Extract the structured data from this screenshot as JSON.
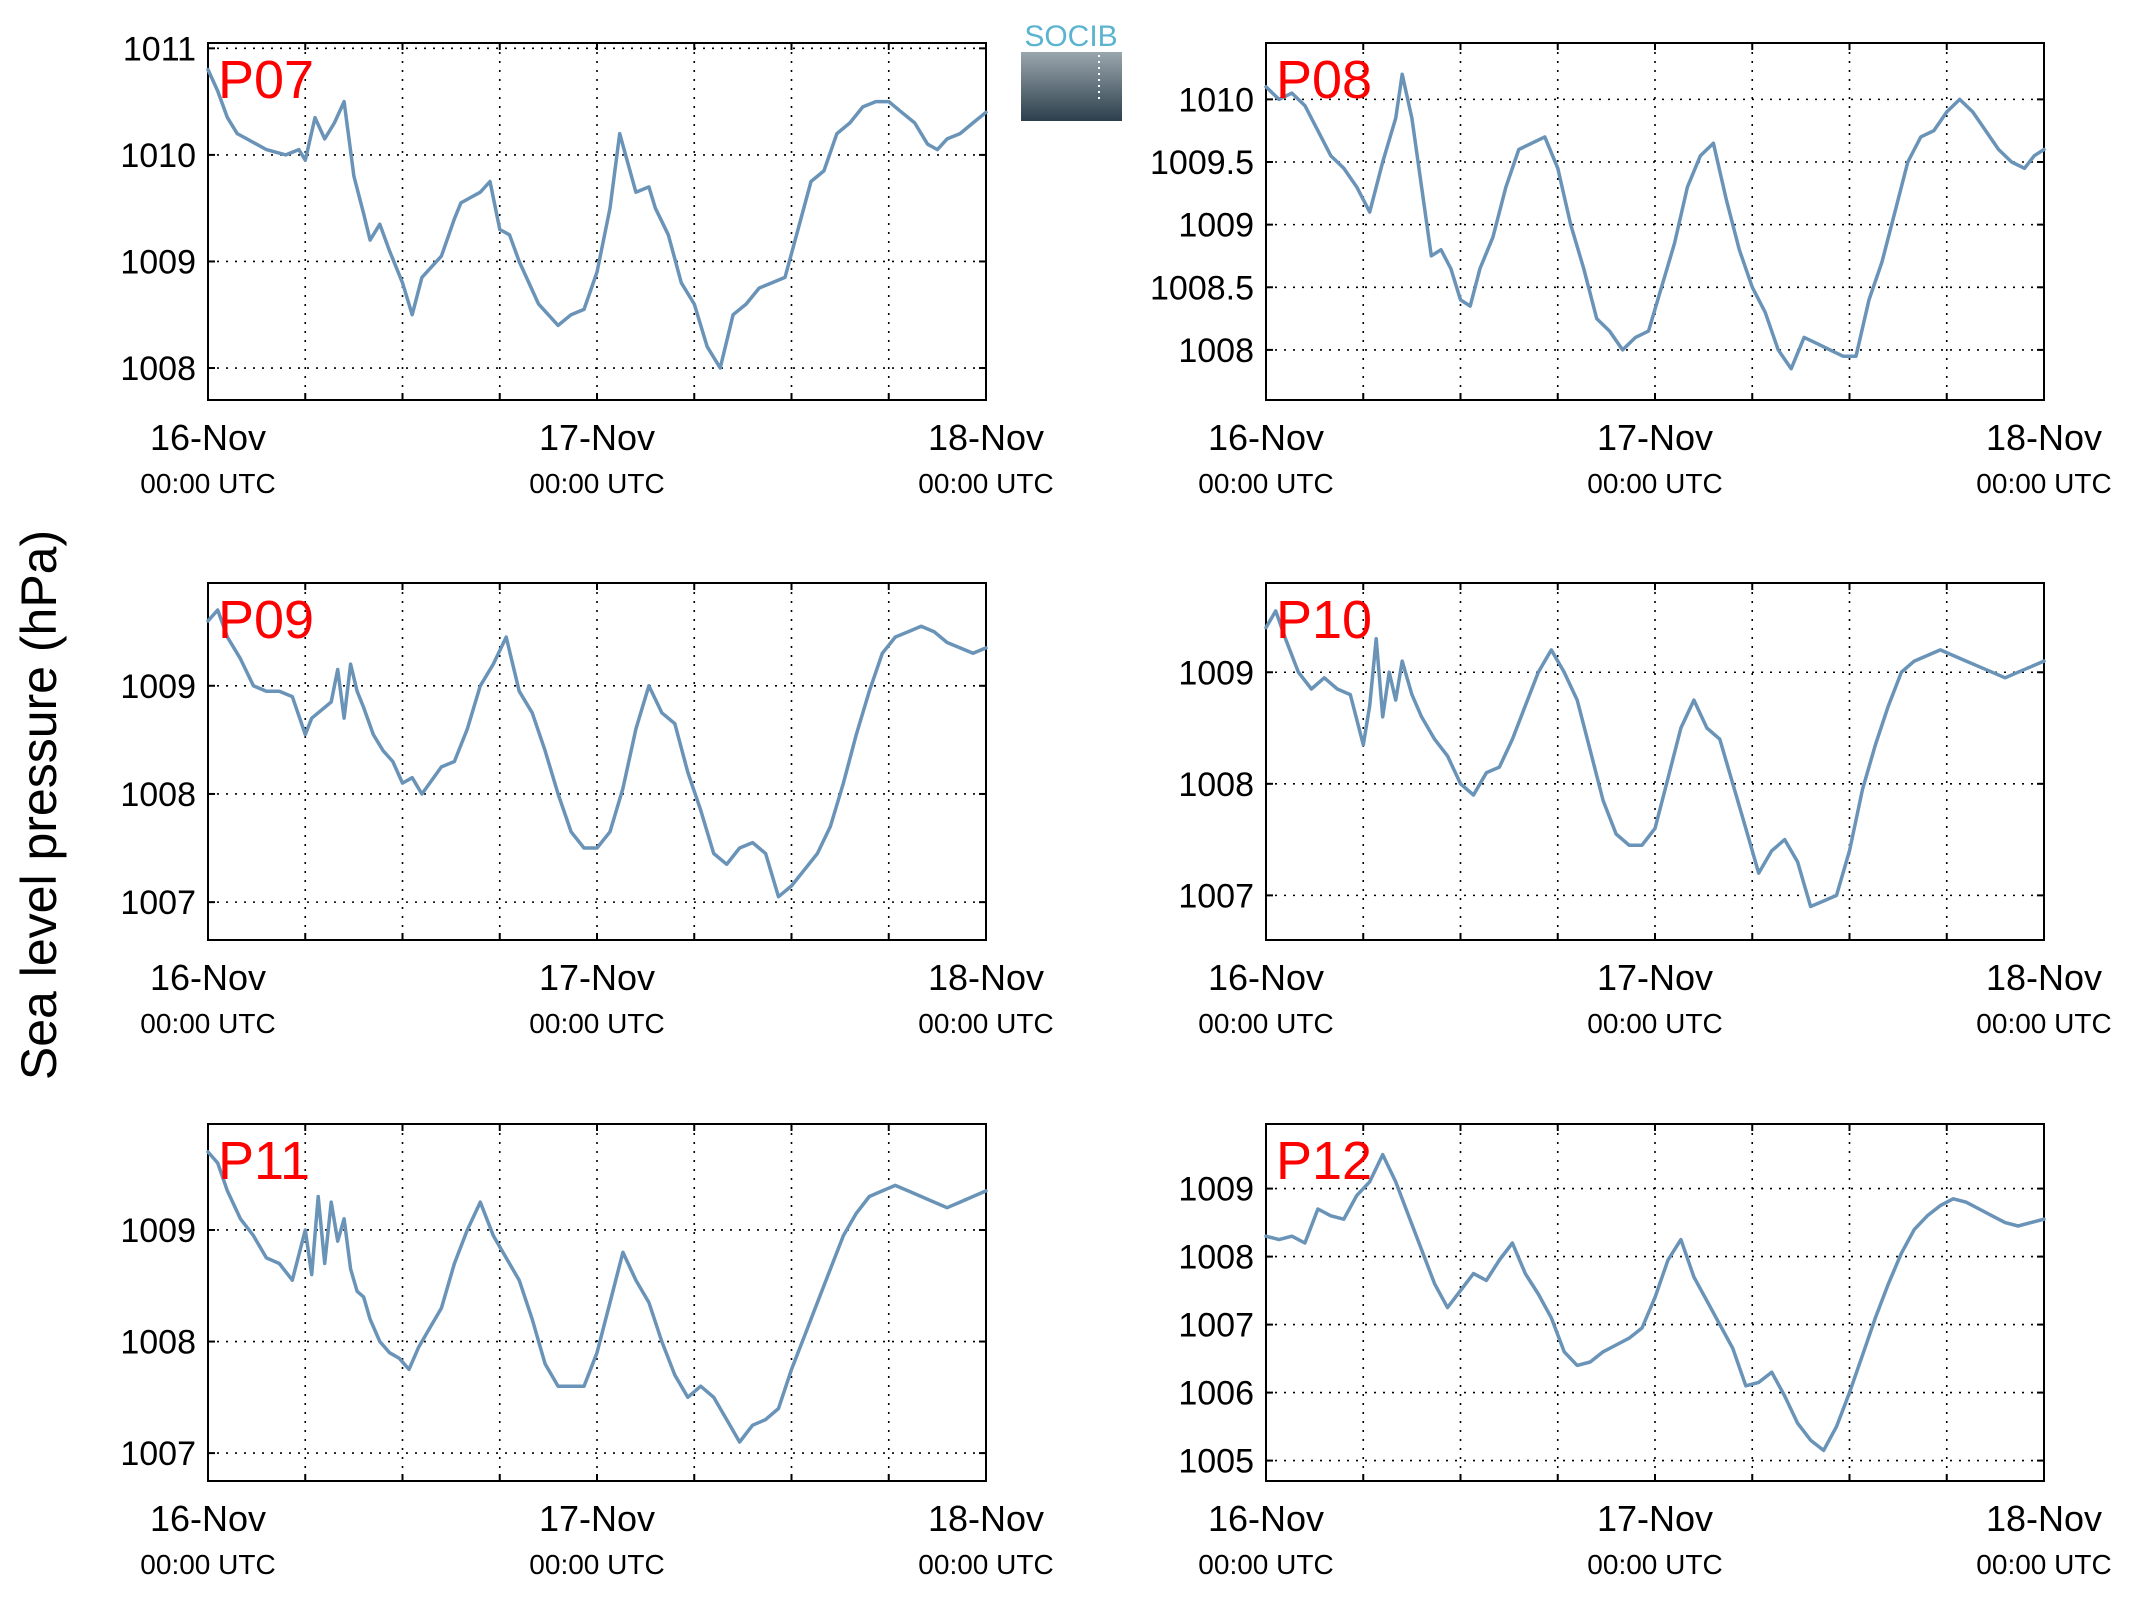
{
  "ylabel": "Sea level pressure (hPa)",
  "logo": {
    "text": "SOCIB"
  },
  "colors": {
    "line": "#6a93b8",
    "station_label": "#ff0000",
    "grid": "#000000",
    "logo_text": "#5ab4d0",
    "logo_top": "#9aa6ad",
    "logo_bottom": "#2c3f4c"
  },
  "chart_data": [
    {
      "type": "line",
      "station": "P07",
      "xlabels": [
        {
          "date": "16-Nov",
          "time": "00:00 UTC"
        },
        {
          "date": "17-Nov",
          "time": "00:00 UTC"
        },
        {
          "date": "18-Nov",
          "time": "00:00 UTC"
        }
      ],
      "xlim": [
        0,
        48
      ],
      "ylim": [
        1007.7,
        1011.05
      ],
      "yticks": [
        1008,
        1009,
        1010,
        1011
      ],
      "grid": true,
      "x": [
        0,
        0.6,
        1.2,
        1.8,
        2.4,
        3.6,
        4.8,
        5.6,
        6.0,
        6.6,
        7.2,
        7.8,
        8.4,
        9.0,
        9.6,
        10.0,
        10.6,
        11.2,
        12.0,
        12.6,
        13.2,
        14.4,
        15.2,
        15.6,
        16.2,
        16.8,
        17.4,
        18.0,
        18.6,
        19.2,
        20.4,
        21.6,
        22.4,
        23.2,
        24.0,
        24.8,
        25.4,
        26.4,
        27.2,
        27.6,
        28.4,
        29.2,
        30.0,
        30.8,
        31.6,
        32.4,
        33.2,
        34.0,
        34.8,
        35.6,
        36.4,
        37.2,
        38.0,
        38.8,
        39.6,
        40.4,
        41.2,
        42.0,
        42.8,
        43.6,
        44.4,
        45.0,
        45.6,
        46.4,
        47.2,
        48.0
      ],
      "values": [
        1010.8,
        1010.6,
        1010.35,
        1010.2,
        1010.15,
        1010.05,
        1010.0,
        1010.05,
        1009.95,
        1010.35,
        1010.15,
        1010.3,
        1010.5,
        1009.8,
        1009.45,
        1009.2,
        1009.35,
        1009.1,
        1008.8,
        1008.5,
        1008.85,
        1009.05,
        1009.4,
        1009.55,
        1009.6,
        1009.65,
        1009.75,
        1009.3,
        1009.25,
        1009.0,
        1008.6,
        1008.4,
        1008.5,
        1008.55,
        1008.9,
        1009.5,
        1010.2,
        1009.65,
        1009.7,
        1009.5,
        1009.25,
        1008.8,
        1008.6,
        1008.2,
        1008.0,
        1008.5,
        1008.6,
        1008.75,
        1008.8,
        1008.85,
        1009.3,
        1009.75,
        1009.85,
        1010.2,
        1010.3,
        1010.45,
        1010.5,
        1010.5,
        1010.4,
        1010.3,
        1010.1,
        1010.05,
        1010.15,
        1010.2,
        1010.3,
        1010.4
      ]
    },
    {
      "type": "line",
      "station": "P08",
      "xlabels": [
        {
          "date": "16-Nov",
          "time": "00:00 UTC"
        },
        {
          "date": "17-Nov",
          "time": "00:00 UTC"
        },
        {
          "date": "18-Nov",
          "time": "00:00 UTC"
        }
      ],
      "xlim": [
        0,
        48
      ],
      "ylim": [
        1007.6,
        1010.45
      ],
      "yticks": [
        1008,
        1008.5,
        1009,
        1009.5,
        1010
      ],
      "grid": true,
      "x": [
        0,
        0.8,
        1.6,
        2.4,
        3.2,
        4.0,
        4.8,
        5.6,
        6.4,
        7.2,
        8.0,
        8.4,
        9.0,
        9.6,
        10.2,
        10.8,
        11.4,
        12.0,
        12.6,
        13.2,
        14.0,
        14.8,
        15.6,
        16.4,
        17.2,
        18.0,
        18.8,
        19.6,
        20.4,
        21.2,
        22.0,
        22.8,
        23.6,
        24.4,
        25.2,
        26.0,
        26.8,
        27.6,
        28.4,
        29.2,
        30.0,
        30.8,
        31.6,
        32.4,
        33.2,
        34.0,
        34.8,
        35.6,
        36.4,
        37.2,
        38.0,
        38.8,
        39.6,
        40.4,
        41.2,
        42.0,
        42.8,
        43.6,
        44.4,
        45.2,
        46.0,
        46.8,
        47.4,
        48.0
      ],
      "values": [
        1010.1,
        1010.0,
        1010.05,
        1009.95,
        1009.75,
        1009.55,
        1009.45,
        1009.3,
        1009.1,
        1009.5,
        1009.85,
        1010.2,
        1009.85,
        1009.3,
        1008.75,
        1008.8,
        1008.65,
        1008.4,
        1008.35,
        1008.65,
        1008.9,
        1009.3,
        1009.6,
        1009.65,
        1009.7,
        1009.45,
        1009.0,
        1008.65,
        1008.25,
        1008.15,
        1008.0,
        1008.1,
        1008.15,
        1008.5,
        1008.85,
        1009.3,
        1009.55,
        1009.65,
        1009.2,
        1008.8,
        1008.5,
        1008.3,
        1008.0,
        1007.85,
        1008.1,
        1008.05,
        1008.0,
        1007.95,
        1007.95,
        1008.4,
        1008.7,
        1009.1,
        1009.5,
        1009.7,
        1009.75,
        1009.9,
        1010.0,
        1009.9,
        1009.75,
        1009.6,
        1009.5,
        1009.45,
        1009.55,
        1009.6
      ]
    },
    {
      "type": "line",
      "station": "P09",
      "xlabels": [
        {
          "date": "16-Nov",
          "time": "00:00 UTC"
        },
        {
          "date": "17-Nov",
          "time": "00:00 UTC"
        },
        {
          "date": "18-Nov",
          "time": "00:00 UTC"
        }
      ],
      "xlim": [
        0,
        48
      ],
      "ylim": [
        1006.65,
        1009.95
      ],
      "yticks": [
        1007,
        1008,
        1009
      ],
      "grid": true,
      "x": [
        0,
        0.6,
        1.2,
        2.0,
        2.8,
        3.6,
        4.4,
        5.2,
        6.0,
        6.4,
        6.8,
        7.6,
        8.0,
        8.4,
        8.8,
        9.2,
        9.6,
        10.2,
        10.8,
        11.4,
        12.0,
        12.6,
        13.2,
        14.4,
        15.2,
        16.0,
        16.8,
        17.6,
        18.4,
        19.2,
        20.0,
        20.8,
        21.6,
        22.4,
        23.2,
        24.0,
        24.8,
        25.6,
        26.4,
        27.2,
        28.0,
        28.8,
        29.6,
        30.4,
        31.2,
        32.0,
        32.8,
        33.6,
        34.4,
        35.2,
        36.0,
        36.8,
        37.6,
        38.4,
        39.2,
        40.0,
        40.8,
        41.6,
        42.4,
        43.2,
        44.0,
        44.8,
        45.6,
        46.4,
        47.2,
        48.0
      ],
      "values": [
        1009.6,
        1009.7,
        1009.45,
        1009.25,
        1009.0,
        1008.95,
        1008.95,
        1008.9,
        1008.55,
        1008.7,
        1008.75,
        1008.85,
        1009.15,
        1008.7,
        1009.2,
        1008.95,
        1008.8,
        1008.55,
        1008.4,
        1008.3,
        1008.1,
        1008.15,
        1008.0,
        1008.25,
        1008.3,
        1008.6,
        1009.0,
        1009.2,
        1009.45,
        1008.95,
        1008.75,
        1008.4,
        1008.0,
        1007.65,
        1007.5,
        1007.5,
        1007.65,
        1008.05,
        1008.6,
        1009.0,
        1008.75,
        1008.65,
        1008.2,
        1007.85,
        1007.45,
        1007.35,
        1007.5,
        1007.55,
        1007.45,
        1007.05,
        1007.15,
        1007.3,
        1007.45,
        1007.7,
        1008.1,
        1008.55,
        1008.95,
        1009.3,
        1009.45,
        1009.5,
        1009.55,
        1009.5,
        1009.4,
        1009.35,
        1009.3,
        1009.35
      ]
    },
    {
      "type": "line",
      "station": "P10",
      "xlabels": [
        {
          "date": "16-Nov",
          "time": "00:00 UTC"
        },
        {
          "date": "17-Nov",
          "time": "00:00 UTC"
        },
        {
          "date": "18-Nov",
          "time": "00:00 UTC"
        }
      ],
      "xlim": [
        0,
        48
      ],
      "ylim": [
        1006.6,
        1009.8
      ],
      "yticks": [
        1007,
        1008,
        1009
      ],
      "grid": true,
      "x": [
        0,
        0.6,
        1.2,
        2.0,
        2.8,
        3.6,
        4.4,
        5.2,
        6.0,
        6.4,
        6.8,
        7.2,
        7.6,
        8.0,
        8.4,
        9.0,
        9.6,
        10.4,
        11.2,
        12.0,
        12.8,
        13.6,
        14.4,
        15.2,
        16.0,
        16.8,
        17.6,
        18.4,
        19.2,
        20.0,
        20.8,
        21.6,
        22.4,
        23.2,
        24.0,
        24.8,
        25.6,
        26.4,
        27.2,
        28.0,
        28.8,
        29.6,
        30.4,
        31.2,
        32.0,
        32.8,
        33.6,
        34.4,
        35.2,
        36.0,
        36.8,
        37.6,
        38.4,
        39.2,
        40.0,
        40.8,
        41.6,
        42.4,
        43.2,
        44.0,
        44.8,
        45.6,
        46.4,
        47.2,
        48.0
      ],
      "values": [
        1009.4,
        1009.55,
        1009.3,
        1009.0,
        1008.85,
        1008.95,
        1008.85,
        1008.8,
        1008.35,
        1008.7,
        1009.3,
        1008.6,
        1009.0,
        1008.75,
        1009.1,
        1008.8,
        1008.6,
        1008.4,
        1008.25,
        1008.0,
        1007.9,
        1008.1,
        1008.15,
        1008.4,
        1008.7,
        1009.0,
        1009.2,
        1009.0,
        1008.75,
        1008.3,
        1007.85,
        1007.55,
        1007.45,
        1007.45,
        1007.6,
        1008.05,
        1008.5,
        1008.75,
        1008.5,
        1008.4,
        1008.0,
        1007.6,
        1007.2,
        1007.4,
        1007.5,
        1007.3,
        1006.9,
        1006.95,
        1007.0,
        1007.4,
        1007.95,
        1008.35,
        1008.7,
        1009.0,
        1009.1,
        1009.15,
        1009.2,
        1009.15,
        1009.1,
        1009.05,
        1009.0,
        1008.95,
        1009.0,
        1009.05,
        1009.1
      ]
    },
    {
      "type": "line",
      "station": "P11",
      "xlabels": [
        {
          "date": "16-Nov",
          "time": "00:00 UTC"
        },
        {
          "date": "17-Nov",
          "time": "00:00 UTC"
        },
        {
          "date": "18-Nov",
          "time": "00:00 UTC"
        }
      ],
      "xlim": [
        0,
        48
      ],
      "ylim": [
        1006.75,
        1009.95
      ],
      "yticks": [
        1007,
        1008,
        1009
      ],
      "grid": true,
      "x": [
        0,
        0.6,
        1.2,
        2.0,
        2.8,
        3.6,
        4.4,
        5.2,
        6.0,
        6.4,
        6.8,
        7.2,
        7.6,
        8.0,
        8.4,
        8.8,
        9.2,
        9.6,
        10.0,
        10.6,
        11.2,
        11.8,
        12.4,
        13.0,
        13.6,
        14.4,
        15.2,
        16.0,
        16.8,
        17.6,
        18.4,
        19.2,
        20.0,
        20.8,
        21.6,
        22.4,
        23.2,
        24.0,
        24.8,
        25.6,
        26.4,
        27.2,
        28.0,
        28.8,
        29.6,
        30.4,
        31.2,
        32.0,
        32.8,
        33.6,
        34.4,
        35.2,
        36.0,
        36.8,
        37.6,
        38.4,
        39.2,
        40.0,
        40.8,
        41.6,
        42.4,
        43.2,
        44.0,
        44.8,
        45.6,
        46.4,
        47.2,
        48.0
      ],
      "values": [
        1009.7,
        1009.6,
        1009.35,
        1009.1,
        1008.95,
        1008.75,
        1008.7,
        1008.55,
        1009.0,
        1008.6,
        1009.3,
        1008.7,
        1009.25,
        1008.9,
        1009.1,
        1008.65,
        1008.45,
        1008.4,
        1008.2,
        1008.0,
        1007.9,
        1007.85,
        1007.75,
        1007.95,
        1008.1,
        1008.3,
        1008.7,
        1009.0,
        1009.25,
        1008.95,
        1008.75,
        1008.55,
        1008.2,
        1007.8,
        1007.6,
        1007.6,
        1007.6,
        1007.9,
        1008.35,
        1008.8,
        1008.55,
        1008.35,
        1008.0,
        1007.7,
        1007.5,
        1007.6,
        1007.5,
        1007.3,
        1007.1,
        1007.25,
        1007.3,
        1007.4,
        1007.75,
        1008.05,
        1008.35,
        1008.65,
        1008.95,
        1009.15,
        1009.3,
        1009.35,
        1009.4,
        1009.35,
        1009.3,
        1009.25,
        1009.2,
        1009.25,
        1009.3,
        1009.35
      ]
    },
    {
      "type": "line",
      "station": "P12",
      "xlabels": [
        {
          "date": "16-Nov",
          "time": "00:00 UTC"
        },
        {
          "date": "17-Nov",
          "time": "00:00 UTC"
        },
        {
          "date": "18-Nov",
          "time": "00:00 UTC"
        }
      ],
      "xlim": [
        0,
        48
      ],
      "ylim": [
        1004.7,
        1009.95
      ],
      "yticks": [
        1005,
        1006,
        1007,
        1008,
        1009
      ],
      "grid": true,
      "x": [
        0,
        0.8,
        1.6,
        2.4,
        3.2,
        4.0,
        4.8,
        5.6,
        6.4,
        7.2,
        8.0,
        8.8,
        9.6,
        10.4,
        11.2,
        12.0,
        12.8,
        13.6,
        14.4,
        15.2,
        16.0,
        16.8,
        17.6,
        18.4,
        19.2,
        20.0,
        20.8,
        21.6,
        22.4,
        23.2,
        24.0,
        24.8,
        25.6,
        26.4,
        27.2,
        28.0,
        28.8,
        29.6,
        30.4,
        31.2,
        32.0,
        32.8,
        33.6,
        34.4,
        35.2,
        36.0,
        36.8,
        37.6,
        38.4,
        39.2,
        40.0,
        40.8,
        41.6,
        42.4,
        43.2,
        44.0,
        44.8,
        45.6,
        46.4,
        47.2,
        48.0
      ],
      "values": [
        1008.3,
        1008.25,
        1008.3,
        1008.2,
        1008.7,
        1008.6,
        1008.55,
        1008.9,
        1009.1,
        1009.5,
        1009.1,
        1008.6,
        1008.1,
        1007.6,
        1007.25,
        1007.5,
        1007.75,
        1007.65,
        1007.95,
        1008.2,
        1007.75,
        1007.45,
        1007.1,
        1006.6,
        1006.4,
        1006.45,
        1006.6,
        1006.7,
        1006.8,
        1006.95,
        1007.4,
        1007.95,
        1008.25,
        1007.7,
        1007.35,
        1007.0,
        1006.65,
        1006.1,
        1006.15,
        1006.3,
        1005.95,
        1005.55,
        1005.3,
        1005.15,
        1005.5,
        1006.0,
        1006.55,
        1007.1,
        1007.6,
        1008.05,
        1008.4,
        1008.6,
        1008.75,
        1008.85,
        1008.8,
        1008.7,
        1008.6,
        1008.5,
        1008.45,
        1008.5,
        1008.55
      ]
    }
  ]
}
